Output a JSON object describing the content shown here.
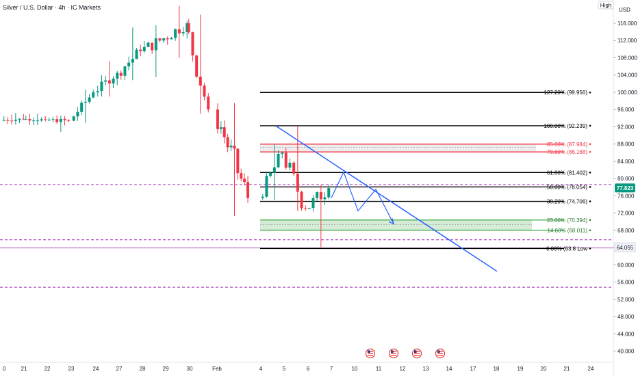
{
  "header": {
    "title": "Silver / U.S. Dollar · 4h · IC Markets",
    "price_mode": "High",
    "currency": "USD"
  },
  "current_price": {
    "value": "77.823",
    "color": "#089981"
  },
  "low_marker": {
    "value": "64.055"
  },
  "colors": {
    "up": "#089981",
    "down": "#f23645",
    "fib_black": "#000000",
    "fib_red": "#f23645",
    "fib_green": "#4caf50",
    "trendline": "#2962ff",
    "dashed_level": "#9c27b0"
  },
  "chart_data": {
    "type": "candlestick",
    "title": "Silver / U.S. Dollar · 4h · IC Markets",
    "xlabel": "",
    "ylabel": "USD",
    "ylim": [
      40,
      118
    ],
    "y_ticks": [
      40,
      44,
      48,
      52,
      56,
      60,
      64,
      68,
      72,
      76,
      80,
      84,
      88,
      92,
      96,
      100,
      104,
      108,
      112,
      116
    ],
    "x_ticks": [
      "0",
      "21",
      "22",
      "23",
      "24",
      "27",
      "28",
      "29",
      "30",
      "Feb",
      "4",
      "5",
      "6",
      "7",
      "10",
      "11",
      "12",
      "13",
      "14",
      "17",
      "18",
      "19",
      "20",
      "21",
      "24"
    ],
    "grid": false,
    "candles_summary": [
      {
        "period": "20 Jan",
        "open": 93.5,
        "close": 93.8,
        "high": 95.2,
        "low": 92.5
      },
      {
        "period": "21 Jan",
        "open": 93.8,
        "close": 93.6,
        "high": 95.0,
        "low": 92.4
      },
      {
        "period": "22 Jan",
        "open": 93.6,
        "close": 93.4,
        "high": 94.6,
        "low": 90.8
      },
      {
        "period": "23 Jan",
        "open": 93.4,
        "close": 100.0,
        "high": 100.6,
        "low": 92.9
      },
      {
        "period": "24 Jan",
        "open": 100.0,
        "close": 104.5,
        "high": 107.2,
        "low": 99.0
      },
      {
        "period": "27 Jan",
        "open": 104.5,
        "close": 109.5,
        "high": 115.0,
        "low": 102.8
      },
      {
        "period": "28 Jan",
        "open": 109.5,
        "close": 112.5,
        "high": 115.5,
        "low": 103.5
      },
      {
        "period": "29 Jan",
        "open": 112.5,
        "close": 116.0,
        "high": 120.0,
        "low": 108.0
      },
      {
        "period": "30 Jan",
        "open": 116.0,
        "close": 96.0,
        "high": 118.0,
        "low": 95.0
      },
      {
        "period": "Feb (2-3)",
        "open": 96.0,
        "close": 75.5,
        "high": 97.5,
        "low": 71.3
      },
      {
        "period": "4 Feb",
        "open": 75.5,
        "close": 86.0,
        "high": 88.0,
        "low": 75.0
      },
      {
        "period": "5 Feb",
        "open": 86.0,
        "close": 73.0,
        "high": 92.2,
        "low": 72.5
      },
      {
        "period": "6 Feb",
        "open": 73.0,
        "close": 77.8,
        "high": 78.5,
        "low": 64.1
      }
    ],
    "fibonacci": {
      "levels": [
        {
          "label": "127.20% (99.956)",
          "ratio": 1.272,
          "price": 99.956,
          "color": "#000000"
        },
        {
          "label": "100.00% (92.239)",
          "ratio": 1.0,
          "price": 92.239,
          "color": "#000000"
        },
        {
          "label": "85.00% (87.984)",
          "ratio": 0.85,
          "price": 87.984,
          "color": "#f23645"
        },
        {
          "label": "78.60% (86.168)",
          "ratio": 0.786,
          "price": 86.168,
          "color": "#f23645"
        },
        {
          "label": "61.80% (81.402)",
          "ratio": 0.618,
          "price": 81.402,
          "color": "#000000"
        },
        {
          "label": "50.00% (78.054)",
          "ratio": 0.5,
          "price": 78.054,
          "color": "#000000"
        },
        {
          "label": "38.20% (74.706)",
          "ratio": 0.382,
          "price": 74.706,
          "color": "#000000"
        },
        {
          "label": "23.00% (70.394)",
          "ratio": 0.23,
          "price": 70.394,
          "color": "#4caf50"
        },
        {
          "label": "14.60% (68.011)",
          "ratio": 0.146,
          "price": 68.011,
          "color": "#4caf50"
        },
        {
          "label": "0.00% (63.8",
          "ratio": 0.0,
          "price": 63.8,
          "color": "#000000",
          "suffix": "Low"
        }
      ]
    },
    "horizontal_levels": [
      {
        "price": 78.6,
        "style": "dashed",
        "color": "#9c27b0"
      },
      {
        "price": 65.8,
        "style": "dashed",
        "color": "#9c27b0"
      },
      {
        "price": 54.8,
        "style": "dashed",
        "color": "#9c27b0"
      },
      {
        "price": 63.9,
        "style": "solid",
        "color": "#9c27b0"
      }
    ],
    "trendline": {
      "from": {
        "date": "4 Feb",
        "price": 92.2
      },
      "to": {
        "date": "18 Feb",
        "price": 58.5
      }
    },
    "projection_path": [
      {
        "date": "7 Feb",
        "price": 75.5
      },
      {
        "date": "8 Feb",
        "price": 81.5
      },
      {
        "date": "10 Feb",
        "price": 72.5
      },
      {
        "date": "11 Feb",
        "price": 77.5
      },
      {
        "date": "12 Feb",
        "price": 69.5
      }
    ],
    "event_markers": [
      "11",
      "12",
      "13",
      "14"
    ]
  }
}
